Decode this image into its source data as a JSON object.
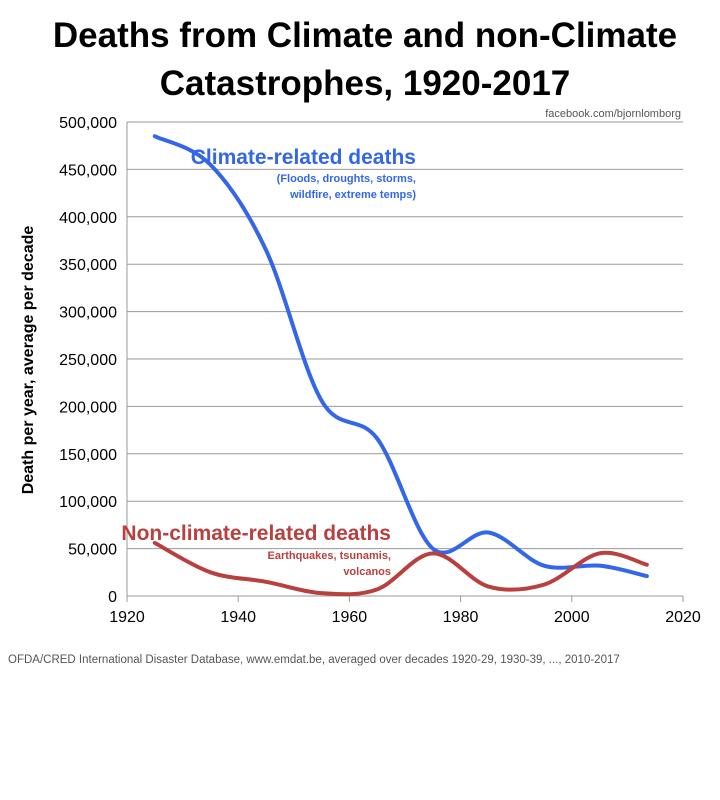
{
  "chart_data": {
    "type": "line",
    "title_lines": [
      "Deaths from Climate and non-Climate",
      "Catastrophes, 1920-2017"
    ],
    "credit": "facebook.com/bjornlomborg",
    "xlabel": "",
    "ylabel": "Death per year, average per decade",
    "xlim": [
      1920,
      2020
    ],
    "ylim": [
      0,
      500000
    ],
    "xticks": [
      "1920",
      "1940",
      "1960",
      "1980",
      "2000",
      "2020"
    ],
    "yticks": [
      "0",
      "50,000",
      "100,000",
      "150,000",
      "200,000",
      "250,000",
      "300,000",
      "350,000",
      "400,000",
      "450,000",
      "500,000"
    ],
    "grid": true,
    "x": [
      1925,
      1935,
      1945,
      1955,
      1965,
      1975,
      1985,
      1995,
      2005,
      2013.5
    ],
    "series": [
      {
        "name": "Climate-related deaths",
        "note": [
          "(Floods, droughts, storms,",
          "wildfire, extreme temps)"
        ],
        "color": "#3366e8",
        "values": [
          485000,
          455000,
          365000,
          206000,
          166000,
          50000,
          67000,
          32000,
          32000,
          21000
        ]
      },
      {
        "name": "Non-climate-related deaths",
        "note": [
          "Earthquakes, tsunamis,",
          "volcanos"
        ],
        "color": "#b8403f",
        "values": [
          56000,
          25000,
          15000,
          3000,
          7000,
          45000,
          10000,
          12000,
          45000,
          33000
        ]
      }
    ],
    "source": "OFDA/CRED International Disaster Database, www.emdat.be, averaged over decades 1920-29, 1930-39, ..., 2010-2017"
  }
}
